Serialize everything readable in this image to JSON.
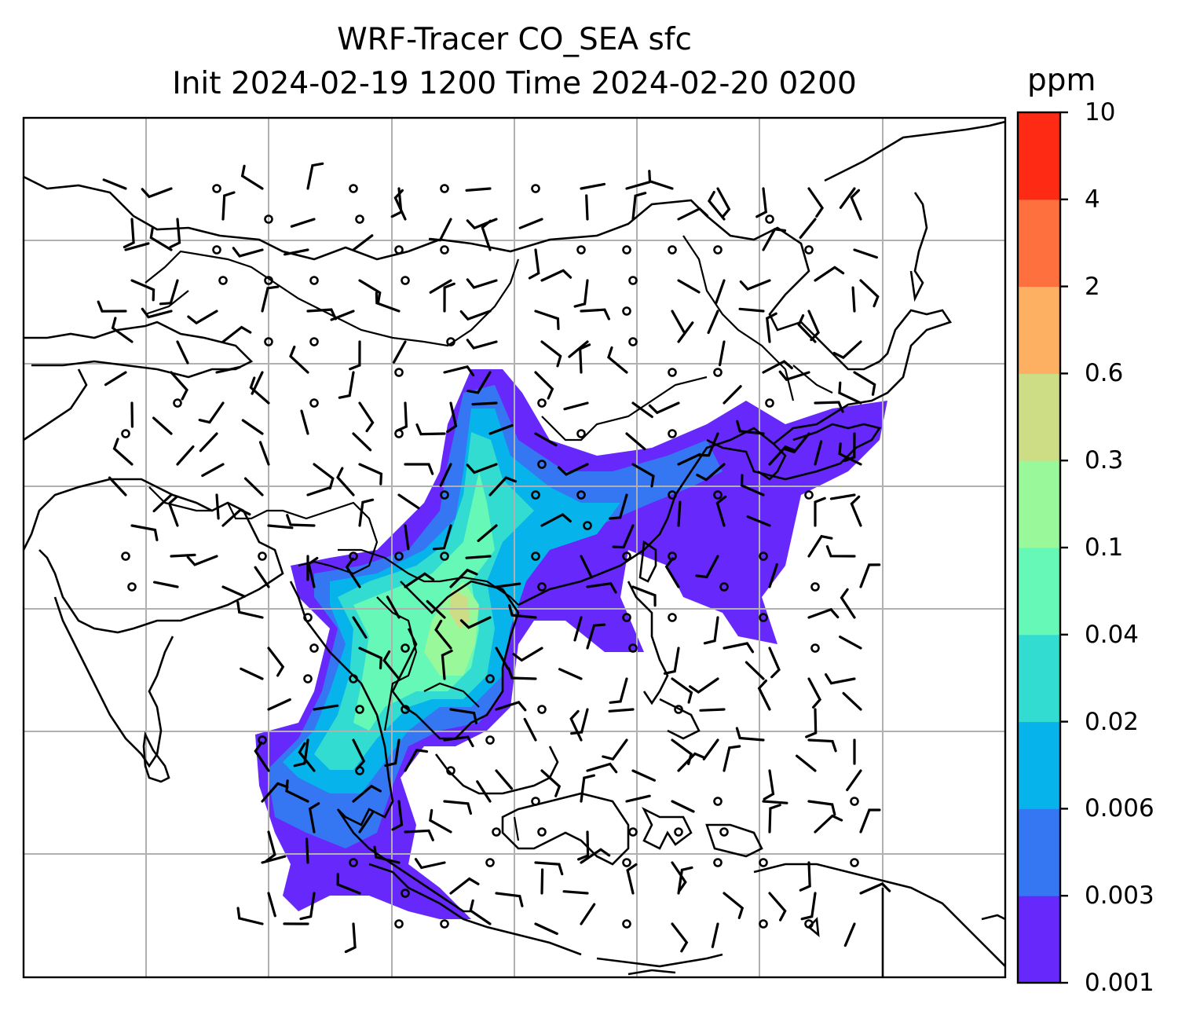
{
  "title": {
    "line1": "WRF-Tracer CO_SEA sfc",
    "line2": "Init 2024-02-19 1200 Time 2024-02-20 0200"
  },
  "colorbar": {
    "unit": "ppm",
    "levels": [
      "0.001",
      "0.003",
      "0.006",
      "0.02",
      "0.04",
      "0.1",
      "0.3",
      "0.6",
      "2",
      "4",
      "10"
    ],
    "colors": [
      "#6628fb",
      "#3576f3",
      "#06b3ea",
      "#33dcd0",
      "#66f8b7",
      "#98f89a",
      "#ccdd86",
      "#fdb062",
      "#fe703e",
      "#fe2a14"
    ]
  },
  "map": {
    "projection": "Lambert conformal",
    "gridlines": true,
    "features": [
      "coastlines",
      "country borders",
      "wind barbs",
      "CO tracer shading"
    ],
    "land_color": "#ffffff",
    "grid_color": "#b0b0b0"
  }
}
